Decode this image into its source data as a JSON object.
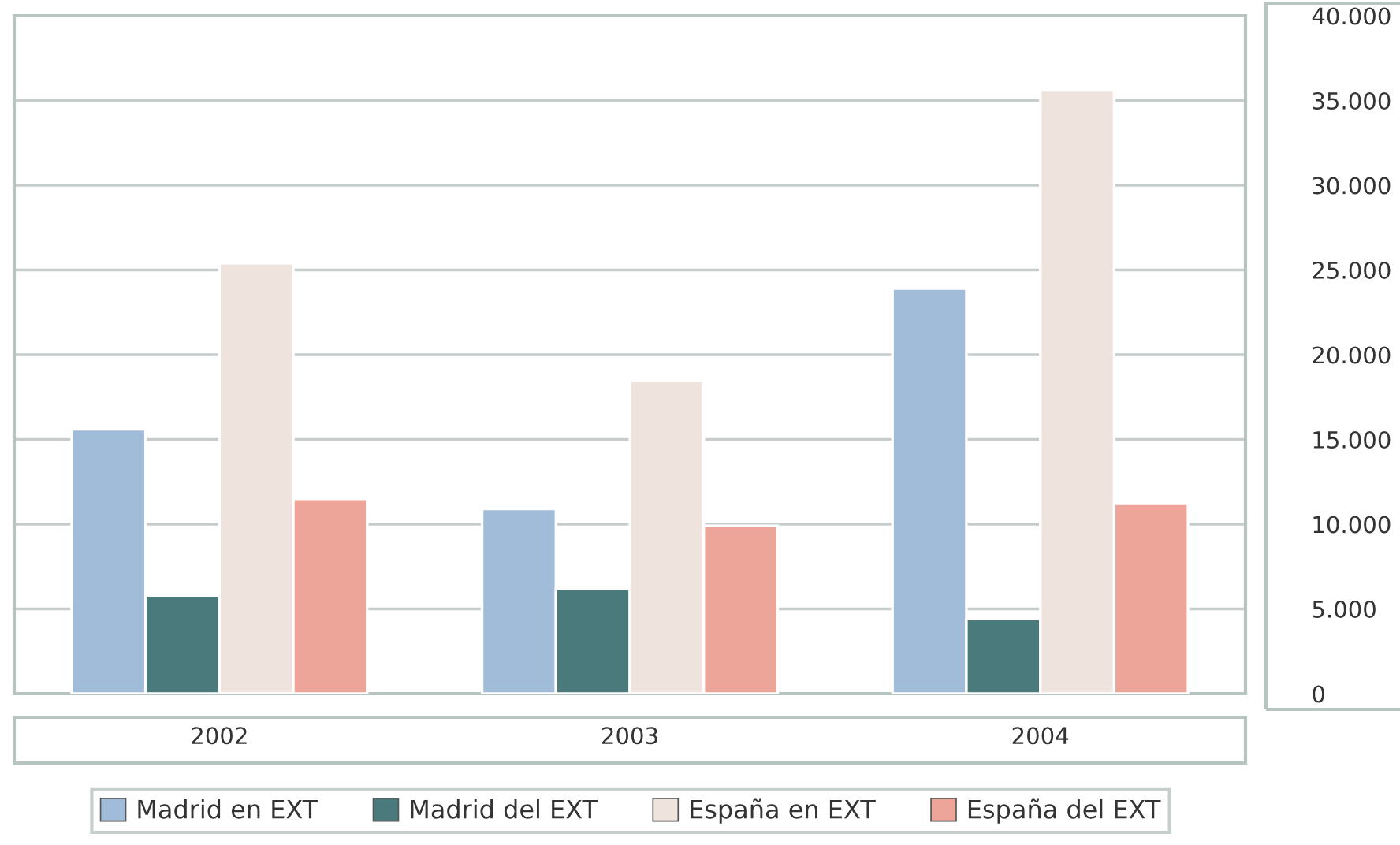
{
  "chart_data": {
    "type": "bar",
    "categories": [
      "2002",
      "2003",
      "2004"
    ],
    "series": [
      {
        "name": "Madrid en EXT",
        "color": "#a0bcd8",
        "values": [
          15600,
          10900,
          23900
        ]
      },
      {
        "name": "Madrid del EXT",
        "color": "#4a7a7c",
        "values": [
          5800,
          6200,
          4400
        ]
      },
      {
        "name": "España en EXT",
        "color": "#efe3de",
        "values": [
          25400,
          18500,
          35600
        ]
      },
      {
        "name": "España del EXT",
        "color": "#eca598",
        "values": [
          11500,
          9900,
          11200
        ]
      }
    ],
    "ylim": [
      0,
      40000
    ],
    "yticks": [
      0,
      {
        "value": 5000,
        "label": "5.000"
      },
      {
        "value": 10000,
        "label": "10.000"
      },
      {
        "value": 15000,
        "label": "15.000"
      },
      {
        "value": 20000,
        "label": "20.000"
      },
      {
        "value": 25000,
        "label": "25.000"
      },
      {
        "value": 30000,
        "label": "30.000"
      },
      {
        "value": 35000,
        "label": "35.000"
      },
      {
        "value": 40000,
        "label": "40.000"
      }
    ],
    "grid": "y",
    "legend": "bottom"
  }
}
